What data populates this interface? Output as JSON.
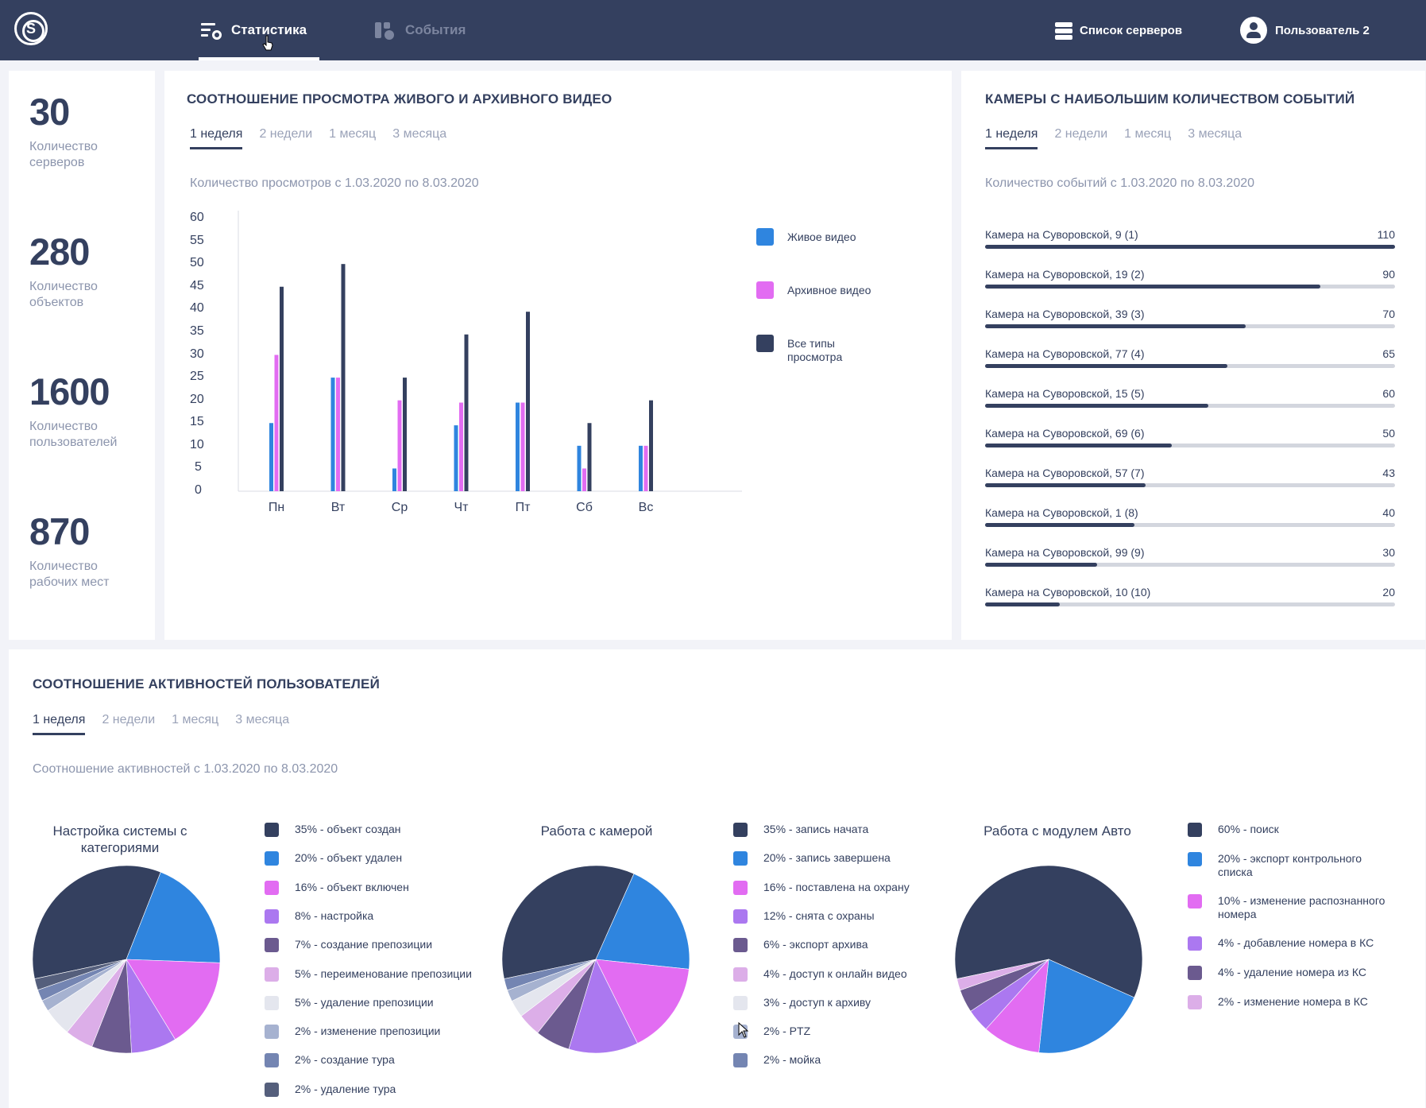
{
  "header": {
    "logo_letter": "S",
    "tabs": [
      {
        "label": "Статистика",
        "active": true
      },
      {
        "label": "События",
        "active": false
      }
    ],
    "servers_label": "Список серверов",
    "user_label": "Пользователь 2"
  },
  "stats": [
    {
      "value": "30",
      "label": "Количество серверов"
    },
    {
      "value": "280",
      "label": "Количество объектов"
    },
    {
      "value": "1600",
      "label": "Количество пользователей"
    },
    {
      "value": "870",
      "label": "Количество рабочих мест"
    }
  ],
  "periods": [
    "1 неделя",
    "2 недели",
    "1 месяц",
    "3 месяца"
  ],
  "video": {
    "title": "СООТНОШЕНИЕ ПРОСМОТРА ЖИВОГО И АРХИВНОГО ВИДЕО",
    "range": "Количество просмотров с 1.03.2020 по 8.03.2020"
  },
  "chart_data": {
    "type": "bar",
    "title": "",
    "xlabel": "",
    "ylabel": "",
    "categories": [
      "Пн",
      "Вт",
      "Ср",
      "Чт",
      "Пт",
      "Сб",
      "Вс"
    ],
    "yticks": [
      "60",
      "55",
      "50",
      "45",
      "40",
      "35",
      "30",
      "25",
      "20",
      "15",
      "10",
      "5",
      "0"
    ],
    "ylim": [
      0,
      60
    ],
    "series": [
      {
        "name": "Живое видео",
        "color": "#2f85df",
        "values": [
          15,
          25,
          5,
          14.5,
          19.5,
          10,
          10
        ]
      },
      {
        "name": "Архивное видео",
        "color": "#e26cf2",
        "values": [
          30,
          25,
          20,
          19.5,
          19.5,
          5,
          10
        ]
      },
      {
        "name": "Все типы просмотра",
        "color": "#34405f",
        "values": [
          45,
          50,
          25,
          34.5,
          39.5,
          15,
          20
        ]
      }
    ],
    "legend_position": "right"
  },
  "cameras": {
    "title": "КАМЕРЫ С НАИБОЛЬШИМ КОЛИЧЕСТВОМ СОБЫТИЙ",
    "range": "Количество событий с 1.03.2020 по 8.03.2020",
    "max": 110,
    "items": [
      {
        "name": "Камера на Суворовской, 9 (1)",
        "value": 110
      },
      {
        "name": "Камера на Суворовской, 19 (2)",
        "value": 90
      },
      {
        "name": "Камера на Суворовской, 39 (3)",
        "value": 70
      },
      {
        "name": "Камера на Суворовской, 77 (4)",
        "value": 65
      },
      {
        "name": "Камера на Суворовской, 15 (5)",
        "value": 60
      },
      {
        "name": "Камера на Суворовской, 69 (6)",
        "value": 50
      },
      {
        "name": "Камера на Суворовской, 57 (7)",
        "value": 43
      },
      {
        "name": "Камера на Суворовской, 1 (8)",
        "value": 40
      },
      {
        "name": "Камера на Суворовской, 99 (9)",
        "value": 30
      },
      {
        "name": "Камера на Суворовской, 10 (10)",
        "value": 20
      }
    ]
  },
  "activity": {
    "title": "СООТНОШЕНИЕ АКТИВНОСТЕЙ ПОЛЬЗОВАТЕЛЕЙ",
    "range": "Соотношение активностей с 1.03.2020 по 8.03.2020",
    "pies": [
      {
        "title": "Настройка системы с категориями",
        "slices": [
          {
            "label": "35% - объект создан",
            "pct": 35,
            "color": "#34405f"
          },
          {
            "label": "20% - объект удален",
            "pct": 20,
            "color": "#2f85df"
          },
          {
            "label": "16% - объект включен",
            "pct": 16,
            "color": "#e26cf2"
          },
          {
            "label": "8% - настройка",
            "pct": 8,
            "color": "#ab78f0"
          },
          {
            "label": "7% - создание препозиции",
            "pct": 7,
            "color": "#6b5a8f"
          },
          {
            "label": "5% - переименование препозиции",
            "pct": 5,
            "color": "#dcaee8"
          },
          {
            "label": "5% - удаление препозиции",
            "pct": 5,
            "color": "#e4e6ee"
          },
          {
            "label": "2% - изменение препозиции",
            "pct": 2,
            "color": "#a6b2d0"
          },
          {
            "label": "2% - создание тура",
            "pct": 2,
            "color": "#7485b2"
          },
          {
            "label": "2% - удаление тура",
            "pct": 2,
            "color": "#555f7c"
          }
        ]
      },
      {
        "title": "Работа с камерой",
        "slices": [
          {
            "label": "35% - запись начата",
            "pct": 35,
            "color": "#34405f"
          },
          {
            "label": "20% - запись завершена",
            "pct": 20,
            "color": "#2f85df"
          },
          {
            "label": "16% - поставлена на охрану",
            "pct": 16,
            "color": "#e26cf2"
          },
          {
            "label": "12% - снята с охраны",
            "pct": 12,
            "color": "#ab78f0"
          },
          {
            "label": "6% - экспорт архива",
            "pct": 6,
            "color": "#6b5a8f"
          },
          {
            "label": "4% - доступ к онлайн видео",
            "pct": 4,
            "color": "#dcaee8"
          },
          {
            "label": "3% - доступ к архиву",
            "pct": 3,
            "color": "#e4e6ee"
          },
          {
            "label": "2% - PTZ",
            "pct": 2,
            "color": "#a6b2d0"
          },
          {
            "label": "2% - мойка",
            "pct": 2,
            "color": "#7485b2"
          }
        ]
      },
      {
        "title": "Работа с модулем Авто",
        "slices": [
          {
            "label": "60% - поиск",
            "pct": 60,
            "color": "#34405f"
          },
          {
            "label": "20% - экспорт контрольного списка",
            "pct": 20,
            "color": "#2f85df"
          },
          {
            "label": "10% - изменение распознанного номера",
            "pct": 10,
            "color": "#e26cf2"
          },
          {
            "label": "4% - добавление номера в КС",
            "pct": 4,
            "color": "#ab78f0"
          },
          {
            "label": "4% - удаление номера из КС",
            "pct": 4,
            "color": "#6b5a8f"
          },
          {
            "label": "2% - изменение номера в КС",
            "pct": 2,
            "color": "#dcaee8"
          }
        ]
      }
    ]
  }
}
